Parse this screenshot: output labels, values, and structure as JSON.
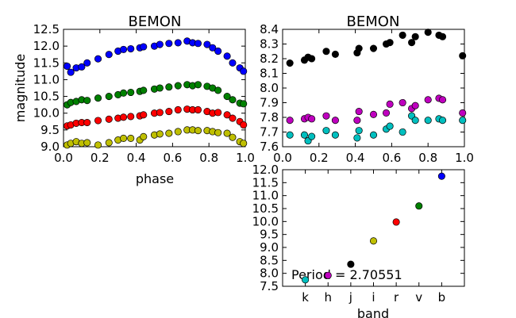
{
  "chart_data": [
    {
      "type": "scatter",
      "title": "BEMON",
      "xlabel": "phase",
      "ylabel": "magnitude",
      "xlim": [
        0.0,
        1.0
      ],
      "ylim": [
        12.5,
        9.0
      ],
      "y_inverted": true,
      "xticks": [
        "0.0",
        "0.2",
        "0.4",
        "0.6",
        "0.8",
        "1.0"
      ],
      "yticks": [
        "9.0",
        "9.5",
        "10.0",
        "10.5",
        "11.0",
        "11.5",
        "12.0",
        "12.5"
      ],
      "series": [
        {
          "color": "#bfbf00",
          "points": [
            [
              0.02,
              9.05
            ],
            [
              0.04,
              9.1
            ],
            [
              0.07,
              9.15
            ],
            [
              0.1,
              9.1
            ],
            [
              0.13,
              9.12
            ],
            [
              0.19,
              9.05
            ],
            [
              0.25,
              9.12
            ],
            [
              0.3,
              9.2
            ],
            [
              0.33,
              9.25
            ],
            [
              0.37,
              9.25
            ],
            [
              0.42,
              9.2
            ],
            [
              0.44,
              9.3
            ],
            [
              0.5,
              9.35
            ],
            [
              0.53,
              9.38
            ],
            [
              0.58,
              9.4
            ],
            [
              0.63,
              9.45
            ],
            [
              0.68,
              9.5
            ],
            [
              0.71,
              9.5
            ],
            [
              0.74,
              9.48
            ],
            [
              0.79,
              9.48
            ],
            [
              0.82,
              9.45
            ],
            [
              0.85,
              9.42
            ],
            [
              0.9,
              9.4
            ],
            [
              0.93,
              9.28
            ],
            [
              0.97,
              9.15
            ],
            [
              0.99,
              9.1
            ]
          ]
        },
        {
          "color": "#ff0000",
          "points": [
            [
              0.02,
              9.62
            ],
            [
              0.04,
              9.65
            ],
            [
              0.07,
              9.7
            ],
            [
              0.1,
              9.72
            ],
            [
              0.13,
              9.72
            ],
            [
              0.19,
              9.78
            ],
            [
              0.25,
              9.82
            ],
            [
              0.3,
              9.85
            ],
            [
              0.33,
              9.88
            ],
            [
              0.37,
              9.9
            ],
            [
              0.42,
              9.92
            ],
            [
              0.44,
              9.95
            ],
            [
              0.5,
              10.0
            ],
            [
              0.53,
              10.02
            ],
            [
              0.58,
              10.05
            ],
            [
              0.63,
              10.1
            ],
            [
              0.68,
              10.12
            ],
            [
              0.71,
              10.1
            ],
            [
              0.74,
              10.1
            ],
            [
              0.79,
              10.05
            ],
            [
              0.82,
              10.0
            ],
            [
              0.85,
              10.02
            ],
            [
              0.9,
              9.95
            ],
            [
              0.93,
              9.85
            ],
            [
              0.97,
              9.75
            ],
            [
              0.99,
              9.65
            ]
          ]
        },
        {
          "color": "#008000",
          "points": [
            [
              0.02,
              10.25
            ],
            [
              0.04,
              10.32
            ],
            [
              0.07,
              10.35
            ],
            [
              0.1,
              10.4
            ],
            [
              0.13,
              10.38
            ],
            [
              0.19,
              10.45
            ],
            [
              0.25,
              10.5
            ],
            [
              0.3,
              10.55
            ],
            [
              0.33,
              10.6
            ],
            [
              0.37,
              10.62
            ],
            [
              0.42,
              10.65
            ],
            [
              0.44,
              10.68
            ],
            [
              0.5,
              10.72
            ],
            [
              0.53,
              10.75
            ],
            [
              0.58,
              10.78
            ],
            [
              0.63,
              10.82
            ],
            [
              0.68,
              10.85
            ],
            [
              0.71,
              10.82
            ],
            [
              0.74,
              10.85
            ],
            [
              0.79,
              10.8
            ],
            [
              0.82,
              10.75
            ],
            [
              0.85,
              10.68
            ],
            [
              0.9,
              10.5
            ],
            [
              0.93,
              10.4
            ],
            [
              0.97,
              10.3
            ],
            [
              0.99,
              10.28
            ]
          ]
        },
        {
          "color": "#0000ff",
          "points": [
            [
              0.02,
              11.4
            ],
            [
              0.04,
              11.22
            ],
            [
              0.07,
              11.35
            ],
            [
              0.1,
              11.38
            ],
            [
              0.13,
              11.5
            ],
            [
              0.19,
              11.62
            ],
            [
              0.25,
              11.75
            ],
            [
              0.3,
              11.85
            ],
            [
              0.33,
              11.9
            ],
            [
              0.37,
              11.92
            ],
            [
              0.42,
              11.95
            ],
            [
              0.44,
              11.98
            ],
            [
              0.5,
              12.0
            ],
            [
              0.53,
              12.05
            ],
            [
              0.58,
              12.08
            ],
            [
              0.63,
              12.1
            ],
            [
              0.68,
              12.15
            ],
            [
              0.71,
              12.1
            ],
            [
              0.74,
              12.08
            ],
            [
              0.79,
              12.05
            ],
            [
              0.82,
              11.95
            ],
            [
              0.85,
              11.85
            ],
            [
              0.9,
              11.7
            ],
            [
              0.93,
              11.5
            ],
            [
              0.97,
              11.35
            ],
            [
              0.99,
              11.25
            ]
          ]
        }
      ]
    },
    {
      "type": "scatter",
      "title": "BEMON",
      "xlabel": "",
      "ylabel": "",
      "xlim": [
        0.0,
        1.0
      ],
      "ylim": [
        8.4,
        7.6
      ],
      "y_inverted": true,
      "xticks": [
        "0.0",
        "0.2",
        "0.4",
        "0.6",
        "0.8",
        "1.0"
      ],
      "yticks": [
        "7.6",
        "7.7",
        "7.8",
        "7.9",
        "8.0",
        "8.1",
        "8.2",
        "8.3",
        "8.4"
      ],
      "series": [
        {
          "color": "#00bfbf",
          "points": [
            [
              0.04,
              7.68
            ],
            [
              0.12,
              7.68
            ],
            [
              0.14,
              7.64
            ],
            [
              0.16,
              7.67
            ],
            [
              0.24,
              7.71
            ],
            [
              0.29,
              7.68
            ],
            [
              0.41,
              7.66
            ],
            [
              0.42,
              7.71
            ],
            [
              0.5,
              7.68
            ],
            [
              0.57,
              7.72
            ],
            [
              0.59,
              7.74
            ],
            [
              0.66,
              7.7
            ],
            [
              0.71,
              7.81
            ],
            [
              0.73,
              7.78
            ],
            [
              0.8,
              7.78
            ],
            [
              0.86,
              7.79
            ],
            [
              0.88,
              7.78
            ],
            [
              0.99,
              7.78
            ]
          ]
        },
        {
          "color": "#bf00bf",
          "points": [
            [
              0.04,
              7.78
            ],
            [
              0.12,
              7.79
            ],
            [
              0.14,
              7.8
            ],
            [
              0.16,
              7.79
            ],
            [
              0.24,
              7.81
            ],
            [
              0.29,
              7.78
            ],
            [
              0.41,
              7.78
            ],
            [
              0.42,
              7.84
            ],
            [
              0.5,
              7.82
            ],
            [
              0.57,
              7.83
            ],
            [
              0.59,
              7.89
            ],
            [
              0.66,
              7.9
            ],
            [
              0.71,
              7.86
            ],
            [
              0.73,
              7.88
            ],
            [
              0.8,
              7.92
            ],
            [
              0.86,
              7.93
            ],
            [
              0.88,
              7.92
            ],
            [
              0.99,
              7.83
            ]
          ]
        },
        {
          "color": "#000000",
          "points": [
            [
              0.04,
              8.17
            ],
            [
              0.12,
              8.19
            ],
            [
              0.14,
              8.21
            ],
            [
              0.16,
              8.2
            ],
            [
              0.24,
              8.25
            ],
            [
              0.29,
              8.23
            ],
            [
              0.41,
              8.24
            ],
            [
              0.42,
              8.27
            ],
            [
              0.5,
              8.27
            ],
            [
              0.57,
              8.3
            ],
            [
              0.59,
              8.31
            ],
            [
              0.66,
              8.36
            ],
            [
              0.71,
              8.31
            ],
            [
              0.73,
              8.35
            ],
            [
              0.8,
              8.38
            ],
            [
              0.86,
              8.36
            ],
            [
              0.88,
              8.35
            ],
            [
              0.99,
              8.22
            ]
          ]
        }
      ]
    },
    {
      "type": "scatter",
      "title": "",
      "xlabel": "band",
      "ylabel": "",
      "ylim": [
        12.0,
        7.5
      ],
      "y_inverted": true,
      "categories": [
        "k",
        "h",
        "j",
        "i",
        "r",
        "v",
        "b"
      ],
      "yticks": [
        "7.5",
        "8.0",
        "8.5",
        "9.0",
        "9.5",
        "10.0",
        "10.5",
        "11.0",
        "11.5",
        "12.0"
      ],
      "values": [
        7.75,
        7.92,
        8.35,
        9.25,
        9.98,
        10.6,
        11.75
      ],
      "colors": [
        "#00bfbf",
        "#bf00bf",
        "#000000",
        "#bfbf00",
        "#ff0000",
        "#008000",
        "#0000ff"
      ],
      "annotation": "Period = 2.70551"
    }
  ]
}
